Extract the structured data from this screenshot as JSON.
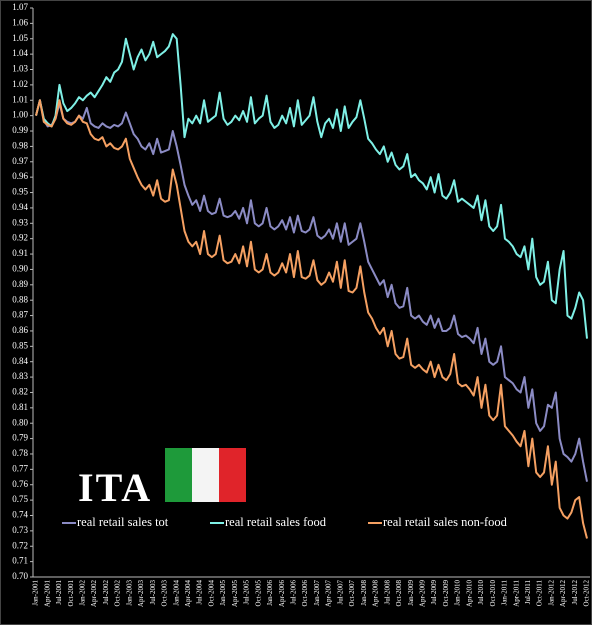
{
  "chart_data": {
    "type": "line",
    "annotation": "ITA",
    "legend": "bottom",
    "categories": [
      "Jan-2001",
      null,
      null,
      "Apr-2001",
      null,
      null,
      "Jul-2001",
      null,
      null,
      "Oct-2001",
      null,
      null,
      "Jan-2002",
      null,
      null,
      "Apr-2002",
      null,
      null,
      "Jul-2002",
      null,
      null,
      "Oct-2002",
      null,
      null,
      "Jan-2003",
      null,
      null,
      "Apr-2003",
      null,
      null,
      "Jul-2003",
      null,
      null,
      "Oct-2003",
      null,
      null,
      "Jan-2004",
      null,
      null,
      "Apr-2004",
      null,
      null,
      "Jul-2004",
      null,
      null,
      "Oct-2004",
      null,
      null,
      "Jan-2005",
      null,
      null,
      "Apr-2005",
      null,
      null,
      "Jul-2005",
      null,
      null,
      "Oct-2005",
      null,
      null,
      "Jan-2006",
      null,
      null,
      "Apr-2006",
      null,
      null,
      "Jul-2006",
      null,
      null,
      "Oct-2006",
      null,
      null,
      "Jan-2007",
      null,
      null,
      "Apr-2007",
      null,
      null,
      "Jul-2007",
      null,
      null,
      "Oct-2007",
      null,
      null,
      "Jan-2008",
      null,
      null,
      "Apr-2008",
      null,
      null,
      "Jul-2008",
      null,
      null,
      "Oct-2008",
      null,
      null,
      "Jan-2009",
      null,
      null,
      "Apr-2009",
      null,
      null,
      "Jul-2009",
      null,
      null,
      "Oct-2009",
      null,
      null,
      "Jan-2010",
      null,
      null,
      "Apr-2010",
      null,
      null,
      "Jul-2010",
      null,
      null,
      "Oct-2010",
      null,
      null,
      "Jan-2011",
      null,
      null,
      "Apr-2011",
      null,
      null,
      "Jul-2011",
      null,
      null,
      "Oct-2011",
      null,
      null,
      "Jan-2012",
      null,
      null,
      "Apr-2012",
      null,
      null,
      "Jul-2012",
      null,
      null,
      "Oct-2012"
    ],
    "series": [
      {
        "name": "real retail sales tot",
        "color": "#8b8bc4",
        "values": [
          1.0,
          1.01,
          0.997,
          0.993,
          0.994,
          0.998,
          1.008,
          0.998,
          0.996,
          0.995,
          0.996,
          1.0,
          0.998,
          1.005,
          0.995,
          0.993,
          0.992,
          0.995,
          0.993,
          0.992,
          0.994,
          0.993,
          0.995,
          1.002,
          0.995,
          0.988,
          0.985,
          0.98,
          0.978,
          0.982,
          0.975,
          0.985,
          0.976,
          0.977,
          0.978,
          0.99,
          0.98,
          0.968,
          0.955,
          0.948,
          0.942,
          0.945,
          0.938,
          0.948,
          0.938,
          0.936,
          0.937,
          0.946,
          0.935,
          0.934,
          0.935,
          0.938,
          0.933,
          0.94,
          0.93,
          0.945,
          0.93,
          0.928,
          0.93,
          0.94,
          0.928,
          0.926,
          0.928,
          0.932,
          0.926,
          0.934,
          0.924,
          0.935,
          0.925,
          0.924,
          0.926,
          0.934,
          0.922,
          0.92,
          0.922,
          0.926,
          0.92,
          0.93,
          0.918,
          0.93,
          0.916,
          0.918,
          0.92,
          0.93,
          0.918,
          0.905,
          0.9,
          0.895,
          0.89,
          0.893,
          0.882,
          0.89,
          0.878,
          0.875,
          0.876,
          0.888,
          0.87,
          0.868,
          0.87,
          0.866,
          0.864,
          0.87,
          0.862,
          0.868,
          0.86,
          0.86,
          0.862,
          0.87,
          0.858,
          0.856,
          0.857,
          0.855,
          0.852,
          0.862,
          0.845,
          0.855,
          0.84,
          0.838,
          0.84,
          0.85,
          0.83,
          0.828,
          0.826,
          0.822,
          0.82,
          0.83,
          0.81,
          0.822,
          0.8,
          0.795,
          0.798,
          0.812,
          0.81,
          0.82,
          0.79,
          0.78,
          0.778,
          0.775,
          0.78,
          0.79,
          0.775,
          0.762
        ]
      },
      {
        "name": "real retail sales food",
        "color": "#7ff0e6",
        "values": [
          1.0,
          1.01,
          0.998,
          0.995,
          0.993,
          1.0,
          1.02,
          1.008,
          1.003,
          1.005,
          1.008,
          1.012,
          1.01,
          1.013,
          1.015,
          1.012,
          1.016,
          1.02,
          1.025,
          1.022,
          1.028,
          1.03,
          1.035,
          1.05,
          1.04,
          1.03,
          1.038,
          1.043,
          1.036,
          1.04,
          1.048,
          1.038,
          1.04,
          1.042,
          1.045,
          1.053,
          1.05,
          1.02,
          0.986,
          0.998,
          0.995,
          1.0,
          0.995,
          1.01,
          0.996,
          0.998,
          1.0,
          1.015,
          0.998,
          0.994,
          0.996,
          1.0,
          0.997,
          1.003,
          0.996,
          1.012,
          0.995,
          0.998,
          1.0,
          1.013,
          0.996,
          0.992,
          0.994,
          1.0,
          0.995,
          1.005,
          0.993,
          1.01,
          0.994,
          0.997,
          1.0,
          1.012,
          0.996,
          0.986,
          0.995,
          0.998,
          0.992,
          1.004,
          0.99,
          1.006,
          0.992,
          0.996,
          0.999,
          1.01,
          0.998,
          0.985,
          0.982,
          0.978,
          0.975,
          0.98,
          0.97,
          0.976,
          0.968,
          0.965,
          0.967,
          0.975,
          0.96,
          0.962,
          0.958,
          0.956,
          0.952,
          0.96,
          0.95,
          0.962,
          0.948,
          0.946,
          0.95,
          0.958,
          0.944,
          0.946,
          0.944,
          0.942,
          0.94,
          0.948,
          0.932,
          0.945,
          0.928,
          0.925,
          0.928,
          0.942,
          0.92,
          0.918,
          0.915,
          0.91,
          0.908,
          0.915,
          0.9,
          0.92,
          0.895,
          0.89,
          0.892,
          0.905,
          0.88,
          0.878,
          0.9,
          0.912,
          0.87,
          0.868,
          0.875,
          0.885,
          0.88,
          0.855
        ]
      },
      {
        "name": "real retail sales non-food",
        "color": "#f5a062",
        "values": [
          1.0,
          1.01,
          0.996,
          0.994,
          0.993,
          0.998,
          1.01,
          0.998,
          0.995,
          0.994,
          0.996,
          1.0,
          0.996,
          0.995,
          0.988,
          0.985,
          0.984,
          0.986,
          0.98,
          0.982,
          0.979,
          0.978,
          0.98,
          0.985,
          0.972,
          0.966,
          0.96,
          0.955,
          0.952,
          0.955,
          0.948,
          0.958,
          0.946,
          0.944,
          0.945,
          0.965,
          0.955,
          0.94,
          0.925,
          0.918,
          0.915,
          0.918,
          0.91,
          0.925,
          0.91,
          0.908,
          0.91,
          0.922,
          0.906,
          0.904,
          0.905,
          0.91,
          0.904,
          0.915,
          0.902,
          0.918,
          0.9,
          0.898,
          0.9,
          0.91,
          0.898,
          0.896,
          0.898,
          0.904,
          0.898,
          0.91,
          0.895,
          0.912,
          0.895,
          0.894,
          0.896,
          0.906,
          0.893,
          0.89,
          0.892,
          0.898,
          0.892,
          0.905,
          0.888,
          0.906,
          0.886,
          0.885,
          0.888,
          0.902,
          0.885,
          0.872,
          0.868,
          0.862,
          0.858,
          0.862,
          0.85,
          0.86,
          0.845,
          0.842,
          0.843,
          0.855,
          0.838,
          0.836,
          0.838,
          0.835,
          0.833,
          0.84,
          0.83,
          0.838,
          0.83,
          0.828,
          0.832,
          0.845,
          0.826,
          0.824,
          0.825,
          0.822,
          0.818,
          0.83,
          0.81,
          0.825,
          0.805,
          0.802,
          0.805,
          0.825,
          0.798,
          0.795,
          0.792,
          0.788,
          0.785,
          0.795,
          0.772,
          0.79,
          0.768,
          0.765,
          0.768,
          0.785,
          0.76,
          0.775,
          0.745,
          0.74,
          0.738,
          0.742,
          0.75,
          0.752,
          0.735,
          0.725
        ]
      }
    ],
    "ylim": [
      0.7,
      1.07
    ],
    "yticks": [
      {
        "value": 0.7,
        "label": "0.70"
      },
      0.71,
      0.72,
      0.73,
      0.74,
      0.75,
      0.76,
      0.77,
      0.78,
      0.79,
      {
        "value": 0.8,
        "label": "0.80"
      },
      0.81,
      0.82,
      0.83,
      0.84,
      0.85,
      0.86,
      0.87,
      0.88,
      0.89,
      {
        "value": 0.9,
        "label": "0.90"
      },
      0.91,
      0.92,
      0.93,
      0.94,
      0.95,
      0.96,
      0.97,
      0.98,
      0.99,
      {
        "value": 1,
        "label": "1.00"
      },
      1.01,
      1.02,
      1.03,
      1.04,
      1.05,
      1.06,
      1.07
    ],
    "grid": false
  }
}
